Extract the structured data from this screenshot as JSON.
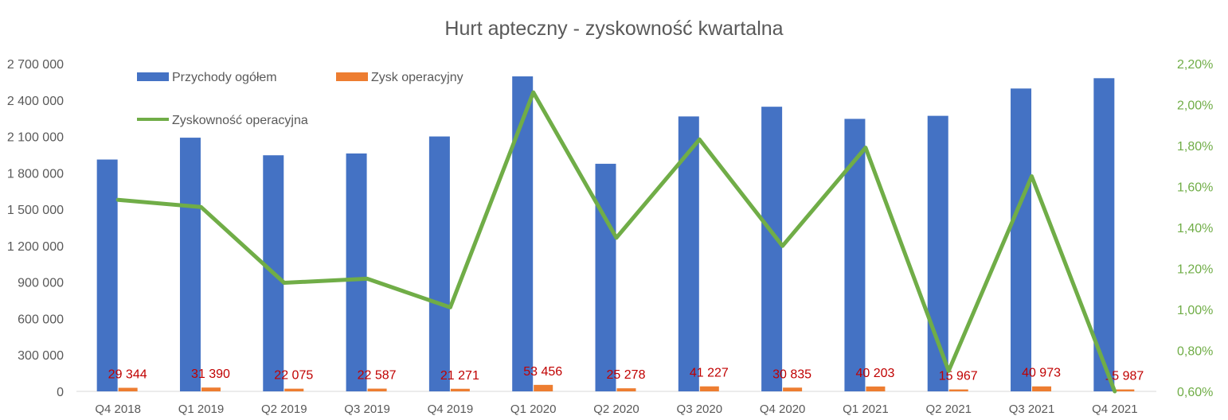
{
  "chart_data": {
    "type": "bar",
    "title": "Hurt apteczny - zyskowność kwartalna",
    "categories": [
      "Q4 2018",
      "Q1 2019",
      "Q2 2019",
      "Q3 2019",
      "Q4 2019",
      "Q1 2020",
      "Q2 2020",
      "Q3 2020",
      "Q4 2020",
      "Q1 2021",
      "Q2 2021",
      "Q3 2021",
      "Q4 2021"
    ],
    "series": [
      {
        "name": "Przychody ogółem",
        "type": "bar",
        "axis": "left",
        "color": "#4472c4",
        "values": [
          1910000,
          2090000,
          1945000,
          1960000,
          2100000,
          2595000,
          1875000,
          2265000,
          2345000,
          2245000,
          2270000,
          2495000,
          2580000
        ]
      },
      {
        "name": "Zysk operacyjny",
        "type": "bar",
        "axis": "left",
        "color": "#ed7d31",
        "values": [
          29344,
          31390,
          22075,
          22587,
          21271,
          53456,
          25278,
          41227,
          30835,
          40203,
          15967,
          40973,
          15987
        ],
        "labels": [
          "29 344",
          "31 390",
          "22 075",
          "22 587",
          "21 271",
          "53 456",
          "25 278",
          "41 227",
          "30 835",
          "40 203",
          "15 967",
          "40 973",
          "15 987"
        ],
        "label_color": "#c00000"
      },
      {
        "name": "Zyskowność operacyjna",
        "type": "line",
        "axis": "right",
        "color": "#70ad47",
        "values": [
          1.535,
          1.5,
          1.13,
          1.15,
          1.01,
          2.06,
          1.35,
          1.83,
          1.31,
          1.79,
          0.7,
          1.65,
          0.6
        ]
      }
    ],
    "y_left": {
      "lim": [
        0,
        2700000
      ],
      "ticks": [
        0,
        300000,
        600000,
        900000,
        1200000,
        1500000,
        1800000,
        2100000,
        2400000,
        2700000
      ],
      "tick_labels": [
        "0",
        "300 000",
        "600 000",
        "900 000",
        "1 200 000",
        "1 500 000",
        "1 800 000",
        "2 100 000",
        "2 400 000",
        "2 700 000"
      ]
    },
    "y_right": {
      "lim": [
        0.6,
        2.2
      ],
      "ticks": [
        0.6,
        0.8,
        1.0,
        1.2,
        1.4,
        1.6,
        1.8,
        2.0,
        2.2
      ],
      "tick_labels": [
        "0,60%",
        "0,80%",
        "1,00%",
        "1,20%",
        "1,40%",
        "1,60%",
        "1,80%",
        "2,00%",
        "2,20%"
      ]
    },
    "grid": false,
    "legend_position": "top-left"
  }
}
